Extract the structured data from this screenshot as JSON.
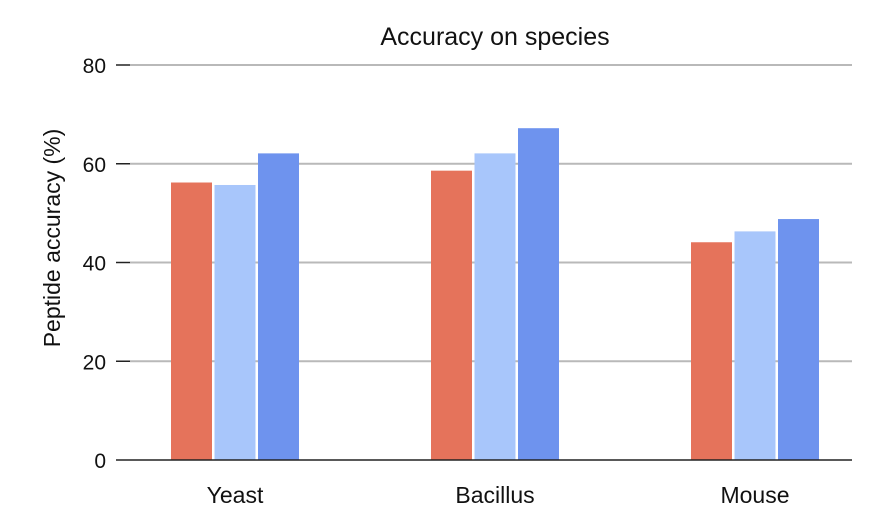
{
  "chart_data": {
    "type": "bar",
    "title": "Accuracy on species",
    "xlabel": "",
    "ylabel": "Peptide accuracy (%)",
    "ylim": [
      0,
      80
    ],
    "yticks": [
      0,
      20,
      40,
      60,
      80
    ],
    "grid": true,
    "categories": [
      "Yeast",
      "Bacillus",
      "Mouse"
    ],
    "series": [
      {
        "values": [
          56.2,
          58.6,
          44.1
        ],
        "color": "#e5735b"
      },
      {
        "values": [
          55.7,
          62.1,
          46.3
        ],
        "color": "#a8c6fb"
      },
      {
        "values": [
          62.1,
          67.2,
          48.8
        ],
        "color": "#6e93ee"
      }
    ]
  }
}
